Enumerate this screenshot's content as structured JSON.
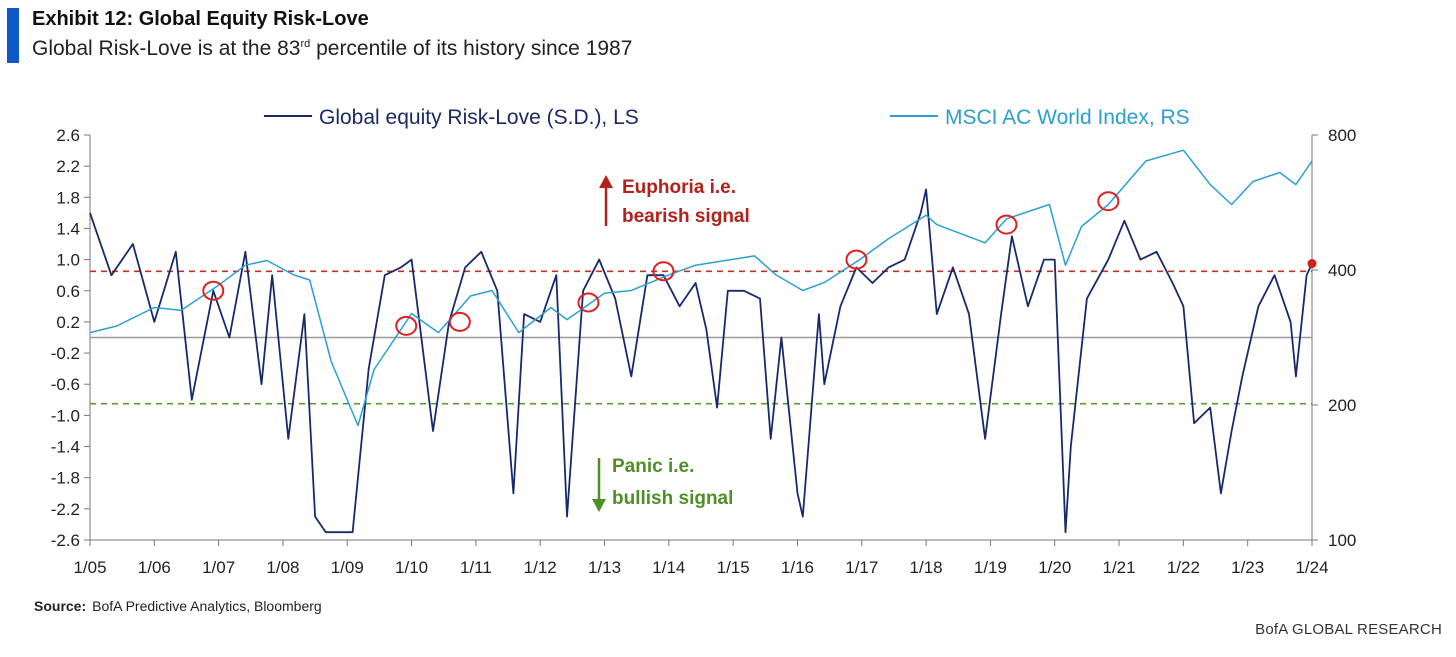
{
  "header": {
    "title": "Exhibit 12: Global Equity Risk-Love",
    "subtitle_pre": "Global Risk-Love is at the 83",
    "subtitle_sup": "rd",
    "subtitle_post": " percentile of its history since 1987"
  },
  "chart_data": {
    "type": "line",
    "legend_placement": "top",
    "grid": false,
    "x_ticks": [
      "1/05",
      "1/06",
      "1/07",
      "1/08",
      "1/09",
      "1/10",
      "1/11",
      "1/12",
      "1/13",
      "1/14",
      "1/15",
      "1/16",
      "1/17",
      "1/18",
      "1/19",
      "1/20",
      "1/21",
      "1/22",
      "1/23",
      "1/24"
    ],
    "left_axis": {
      "ticks": [
        "2.6",
        "2.2",
        "1.8",
        "1.4",
        "1.0",
        "0.6",
        "0.2",
        "-0.2",
        "-0.6",
        "-1.0",
        "-1.4",
        "-1.8",
        "-2.2",
        "-2.6"
      ],
      "ylim": [
        -2.6,
        2.6
      ]
    },
    "right_axis": {
      "ticks": [
        "800",
        "400",
        "200",
        "100"
      ],
      "scale": "log",
      "ylim": [
        100,
        800
      ]
    },
    "series": [
      {
        "name": "Global equity Risk-Love (S.D.), LS",
        "axis": "left",
        "color": "#172a6b",
        "x": [
          "2005-01",
          "2005-05",
          "2005-09",
          "2006-01",
          "2006-05",
          "2006-08",
          "2006-12",
          "2007-03",
          "2007-06",
          "2007-09",
          "2007-11",
          "2008-02",
          "2008-05",
          "2008-07",
          "2008-09",
          "2008-11",
          "2009-02",
          "2009-05",
          "2009-08",
          "2009-11",
          "2010-01",
          "2010-05",
          "2010-08",
          "2010-11",
          "2011-02",
          "2011-05",
          "2011-08",
          "2011-10",
          "2012-01",
          "2012-04",
          "2012-06",
          "2012-09",
          "2012-12",
          "2013-03",
          "2013-06",
          "2013-09",
          "2013-12",
          "2014-03",
          "2014-06",
          "2014-08",
          "2014-10",
          "2014-12",
          "2015-03",
          "2015-06",
          "2015-08",
          "2015-10",
          "2016-01",
          "2016-02",
          "2016-05",
          "2016-06",
          "2016-09",
          "2016-12",
          "2017-03",
          "2017-06",
          "2017-09",
          "2017-12",
          "2018-01",
          "2018-03",
          "2018-06",
          "2018-09",
          "2018-12",
          "2019-03",
          "2019-05",
          "2019-08",
          "2019-11",
          "2020-01",
          "2020-03",
          "2020-04",
          "2020-07",
          "2020-11",
          "2021-02",
          "2021-05",
          "2021-08",
          "2021-11",
          "2022-01",
          "2022-03",
          "2022-06",
          "2022-08",
          "2022-10",
          "2022-12",
          "2023-03",
          "2023-06",
          "2023-09",
          "2023-10",
          "2023-12",
          "2024-01"
        ],
        "values": [
          1.6,
          0.8,
          1.2,
          0.2,
          1.1,
          -0.8,
          0.6,
          0.0,
          1.1,
          -0.6,
          0.8,
          -1.3,
          0.3,
          -2.3,
          -2.5,
          -2.5,
          -2.5,
          -0.4,
          0.8,
          0.9,
          1.0,
          -1.2,
          0.2,
          0.9,
          1.1,
          0.6,
          -2.0,
          0.3,
          0.2,
          0.8,
          -2.3,
          0.6,
          1.0,
          0.5,
          -0.5,
          0.8,
          0.8,
          0.4,
          0.7,
          0.1,
          -0.9,
          0.6,
          0.6,
          0.5,
          -1.3,
          0.0,
          -2.0,
          -2.3,
          0.3,
          -0.6,
          0.4,
          0.9,
          0.7,
          0.9,
          1.0,
          1.6,
          1.9,
          0.3,
          0.9,
          0.3,
          -1.3,
          0.3,
          1.3,
          0.4,
          1.0,
          1.0,
          -2.5,
          -1.4,
          0.5,
          1.0,
          1.5,
          1.0,
          1.1,
          0.7,
          0.4,
          -1.1,
          -0.9,
          -2.0,
          -1.2,
          -0.5,
          0.4,
          0.8,
          0.2,
          -0.5,
          0.8,
          0.95
        ]
      },
      {
        "name": "MSCI AC World Index, RS",
        "axis": "right",
        "color": "#2aa1d3",
        "x": [
          "2005-01",
          "2005-06",
          "2006-01",
          "2006-06",
          "2007-01",
          "2007-06",
          "2007-10",
          "2008-03",
          "2008-06",
          "2008-10",
          "2009-03",
          "2009-06",
          "2010-01",
          "2010-06",
          "2010-12",
          "2011-04",
          "2011-09",
          "2012-03",
          "2012-06",
          "2013-01",
          "2013-06",
          "2014-01",
          "2014-06",
          "2015-05",
          "2015-09",
          "2016-02",
          "2016-06",
          "2017-01",
          "2017-06",
          "2018-01",
          "2018-03",
          "2018-12",
          "2019-04",
          "2019-12",
          "2020-03",
          "2020-06",
          "2020-11",
          "2021-06",
          "2022-01",
          "2022-06",
          "2022-10",
          "2023-02",
          "2023-07",
          "2023-10",
          "2024-01"
        ],
        "values": [
          290,
          300,
          330,
          325,
          370,
          410,
          420,
          390,
          380,
          250,
          180,
          240,
          320,
          290,
          350,
          360,
          290,
          330,
          310,
          355,
          360,
          390,
          410,
          430,
          390,
          360,
          375,
          425,
          470,
          530,
          505,
          460,
          520,
          560,
          410,
          500,
          560,
          700,
          740,
          620,
          560,
          630,
          660,
          620,
          700
        ]
      }
    ],
    "reference_lines": [
      {
        "axis": "left",
        "y": 0.85,
        "color": "#c0312b",
        "style": "dashed"
      },
      {
        "axis": "left",
        "y": -0.85,
        "color": "#5a9a2c",
        "style": "dashed"
      },
      {
        "axis": "left",
        "y": 0.0,
        "color": "#999999",
        "style": "solid"
      }
    ],
    "current_marker": {
      "x": "2024-01",
      "y": 0.95,
      "color": "#d11f1f"
    },
    "highlight_circles": [
      {
        "x": "2006-12",
        "y": 0.6
      },
      {
        "x": "2009-12",
        "y": 0.15
      },
      {
        "x": "2010-10",
        "y": 0.2
      },
      {
        "x": "2012-10",
        "y": 0.45
      },
      {
        "x": "2013-12",
        "y": 0.85
      },
      {
        "x": "2016-12",
        "y": 1.0
      },
      {
        "x": "2019-04",
        "y": 1.45
      },
      {
        "x": "2020-11",
        "y": 1.75
      }
    ],
    "annotations": {
      "euphoria_line1": "Euphoria  i.e.",
      "euphoria_line2": "bearish signal",
      "euphoria_color": "#b3211d",
      "panic_line1": "Panic i.e.",
      "panic_line2": "bullish signal",
      "panic_color": "#4f8f27"
    }
  },
  "footer": {
    "source_label": "Source:",
    "source_text": "BofA Predictive Analytics, Bloomberg",
    "brand": "BofA GLOBAL RESEARCH"
  }
}
